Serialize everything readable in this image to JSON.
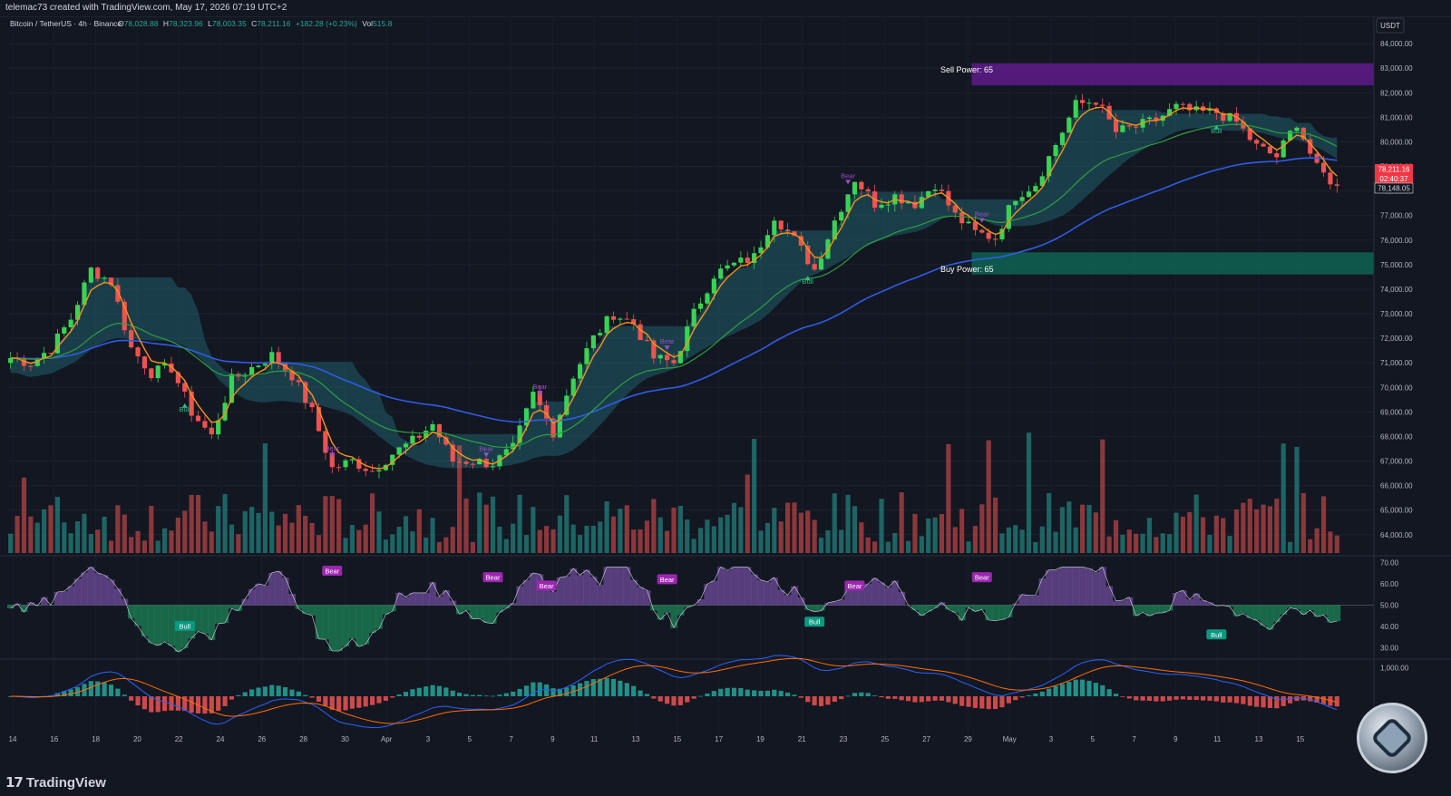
{
  "top": {
    "created_by": "telemac73 created with TradingView.com, May 17, 2026 07:19 UTC+2"
  },
  "legend": {
    "symbol": "Bitcoin / TetherUS · 4h · Binance",
    "o_label": "O",
    "o": "78,028.88",
    "h_label": "H",
    "h": "78,323.96",
    "l_label": "L",
    "l": "78,003.35",
    "c_label": "C",
    "c": "78,211.16",
    "change": "+182.28 (+0.23%)",
    "vol_label": "Vol",
    "vol": "515.8"
  },
  "currency": "USDT",
  "price_tags": {
    "last": "78,211.16",
    "countdown": "02:40:37",
    "other": "78,148.05"
  },
  "zones": {
    "sell": "Sell Power: 65",
    "buy": "Buy Power: 65"
  },
  "labels": {
    "bear": "Bear",
    "bull": "Bull"
  },
  "brand": {
    "name": "TradingView"
  },
  "colors": {
    "up": "#26a69a",
    "up_bright": "#39d353",
    "down": "#ef5350",
    "ema_fast": "#f7931a",
    "ema_mid": "#2e9e3e",
    "ema_slow": "#2f5ce4",
    "cloud": "#1f5f6b",
    "sell_zone": "#6a1b9a",
    "buy_zone": "#0f6e5a"
  },
  "chart_data": [
    {
      "type": "candlestick",
      "title": "",
      "price_axis": [
        "84,000.00",
        "83,000.00",
        "82,000.00",
        "81,000.00",
        "80,000.00",
        "79,000.00",
        "78,000.00",
        "77,000.00",
        "76,000.00",
        "75,000.00",
        "74,000.00",
        "73,000.00",
        "72,000.00",
        "71,000.00",
        "70,000.00",
        "69,000.00",
        "68,000.00",
        "67,000.00",
        "66,000.00",
        "65,000.00",
        "64,000.00"
      ],
      "ylim": [
        63400,
        84300
      ],
      "x_ticks": [
        "14",
        "16",
        "18",
        "20",
        "22",
        "24",
        "26",
        "28",
        "30",
        "Apr",
        "3",
        "5",
        "7",
        "9",
        "11",
        "13",
        "15",
        "17",
        "19",
        "21",
        "23",
        "25",
        "27",
        "29",
        "May",
        "3",
        "5",
        "7",
        "9",
        "11",
        "13",
        "15"
      ],
      "close_anchors": [
        [
          0,
          71200
        ],
        [
          3,
          71000
        ],
        [
          6,
          71600
        ],
        [
          9,
          72800
        ],
        [
          12,
          74800
        ],
        [
          15,
          74300
        ],
        [
          18,
          71600
        ],
        [
          21,
          70600
        ],
        [
          24,
          70800
        ],
        [
          27,
          69000
        ],
        [
          30,
          68000
        ],
        [
          33,
          70300
        ],
        [
          36,
          70800
        ],
        [
          39,
          71300
        ],
        [
          42,
          70500
        ],
        [
          45,
          69000
        ],
        [
          48,
          66700
        ],
        [
          51,
          67000
        ],
        [
          54,
          66600
        ],
        [
          57,
          67300
        ],
        [
          60,
          67800
        ],
        [
          63,
          68500
        ],
        [
          66,
          67000
        ],
        [
          69,
          67000
        ],
        [
          72,
          66900
        ],
        [
          75,
          67500
        ],
        [
          78,
          69700
        ],
        [
          81,
          68200
        ],
        [
          84,
          70500
        ],
        [
          87,
          72000
        ],
        [
          90,
          73000
        ],
        [
          93,
          72600
        ],
        [
          96,
          71200
        ],
        [
          99,
          71000
        ],
        [
          102,
          73000
        ],
        [
          105,
          74600
        ],
        [
          108,
          75000
        ],
        [
          111,
          75300
        ],
        [
          114,
          77000
        ],
        [
          117,
          76000
        ],
        [
          120,
          74800
        ],
        [
          123,
          76800
        ],
        [
          126,
          78500
        ],
        [
          129,
          77500
        ],
        [
          132,
          77800
        ],
        [
          135,
          77500
        ],
        [
          138,
          78300
        ],
        [
          141,
          77000
        ],
        [
          144,
          76300
        ],
        [
          147,
          76100
        ],
        [
          150,
          77800
        ],
        [
          153,
          78300
        ],
        [
          156,
          79900
        ],
        [
          159,
          81500
        ],
        [
          162,
          81700
        ],
        [
          165,
          80400
        ],
        [
          168,
          80600
        ],
        [
          171,
          80900
        ],
        [
          174,
          81400
        ],
        [
          177,
          81200
        ],
        [
          180,
          81200
        ],
        [
          183,
          80800
        ],
        [
          186,
          79800
        ],
        [
          189,
          79400
        ],
        [
          192,
          80800
        ],
        [
          195,
          78900
        ],
        [
          198,
          78211
        ]
      ],
      "sell_zone": [
        82300,
        83200
      ],
      "buy_zone": [
        74600,
        75500
      ],
      "markers": [
        {
          "text": "Bull",
          "i": 26
        },
        {
          "text": "Bear",
          "i": 48
        },
        {
          "text": "Bear",
          "i": 71
        },
        {
          "text": "Bear",
          "i": 79
        },
        {
          "text": "Bear",
          "i": 98
        },
        {
          "text": "Bull",
          "i": 119
        },
        {
          "text": "Bear",
          "i": 125
        },
        {
          "text": "Bear",
          "i": 145
        },
        {
          "text": "Bull",
          "i": 180
        }
      ]
    },
    {
      "type": "area",
      "title": "oscillator",
      "axis": [
        "70.00",
        "60.00",
        "50.00",
        "40.00",
        "30.00"
      ],
      "ylim": [
        25,
        72
      ],
      "baseline": 50,
      "labels": [
        {
          "text": "Bear",
          "i": 48,
          "v": 66
        },
        {
          "text": "Bear",
          "i": 72,
          "v": 63
        },
        {
          "text": "Bear",
          "i": 80,
          "v": 59
        },
        {
          "text": "Bear",
          "i": 98,
          "v": 62
        },
        {
          "text": "Bear",
          "i": 126,
          "v": 59
        },
        {
          "text": "Bear",
          "i": 145,
          "v": 63
        },
        {
          "text": "Bull",
          "i": 26,
          "v": 40
        },
        {
          "text": "Bull",
          "i": 120,
          "v": 42
        },
        {
          "text": "Bull",
          "i": 180,
          "v": 36
        }
      ]
    },
    {
      "type": "histogram",
      "title": "MACD",
      "axis": [
        "1,000.00"
      ],
      "ylim": [
        -1200,
        1200
      ]
    }
  ]
}
